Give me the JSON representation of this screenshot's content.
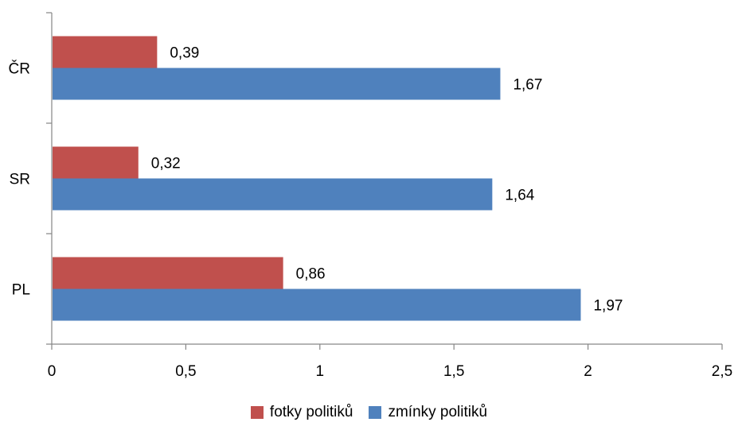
{
  "chart_data": {
    "type": "bar",
    "orientation": "horizontal",
    "categories": [
      "ČR",
      "SR",
      "PL"
    ],
    "series": [
      {
        "name": "fotky politiků",
        "values": [
          0.39,
          0.32,
          0.86
        ],
        "value_labels": [
          "0,39",
          "0,32",
          "0,86"
        ],
        "color": "#C0504D"
      },
      {
        "name": "zmínky politiků",
        "values": [
          1.67,
          1.64,
          1.97
        ],
        "value_labels": [
          "1,67",
          "1,64",
          "1,97"
        ],
        "color": "#4F81BD"
      }
    ],
    "x_ticks": [
      0,
      0.5,
      1,
      1.5,
      2,
      2.5
    ],
    "x_tick_labels": [
      "0",
      "0,5",
      "1",
      "1,5",
      "2",
      "2,5"
    ],
    "xlim": [
      0,
      2.5
    ],
    "title": "",
    "xlabel": "",
    "ylabel": "",
    "grid": false,
    "legend_position": "bottom"
  }
}
